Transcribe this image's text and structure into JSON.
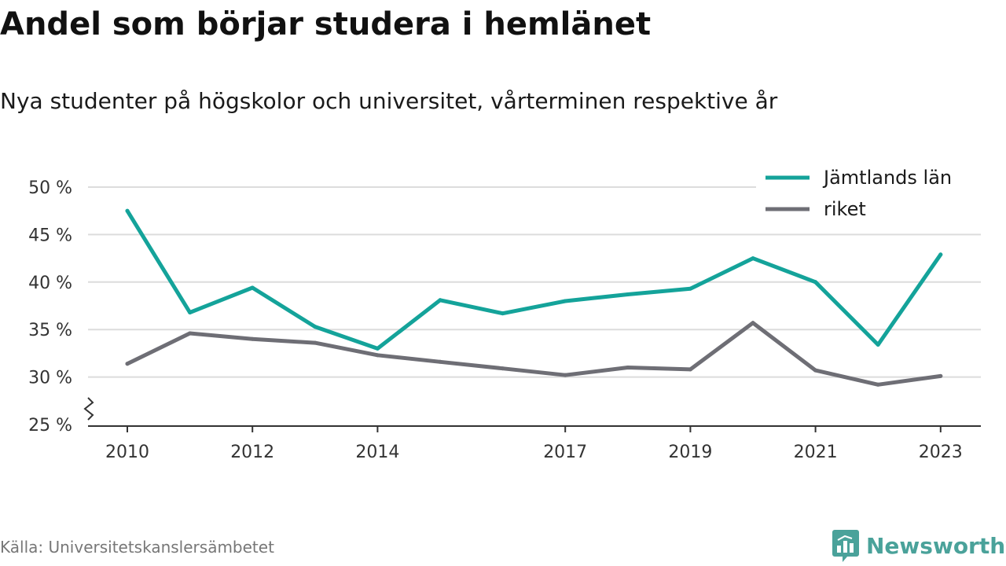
{
  "title": "Andel som börjar studera i hemlänet",
  "subtitle": "Nya studenter på högskolor och universitet, vårterminen respektive år",
  "source": "Källa: Universitetskanslersämbetet",
  "brand": {
    "name": "Newsworthy",
    "icon": "bar-chart-speech-bubble-icon",
    "color": "#4aa29a"
  },
  "chart_data": {
    "type": "line",
    "x": [
      2010,
      2011,
      2012,
      2013,
      2014,
      2015,
      2016,
      2017,
      2018,
      2019,
      2020,
      2021,
      2022,
      2023
    ],
    "x_tick_values": [
      2010,
      2012,
      2014,
      2017,
      2019,
      2021,
      2023
    ],
    "x_tick_labels": [
      "2010",
      "2012",
      "2014",
      "2017",
      "2019",
      "2021",
      "2023"
    ],
    "y_tick_values": [
      25,
      30,
      35,
      40,
      45,
      50
    ],
    "y_tick_labels": [
      "25 %",
      "30 %",
      "35 %",
      "40 %",
      "45 %",
      "50 %"
    ],
    "ylim": [
      25,
      50
    ],
    "y_axis_break": true,
    "grid": true,
    "legend_position": "top-right",
    "series": [
      {
        "name": "Jämtlands län",
        "color": "#14a39a",
        "values": [
          47.5,
          36.8,
          39.4,
          35.3,
          33.0,
          38.1,
          36.7,
          38.0,
          38.7,
          39.3,
          42.5,
          40.0,
          33.4,
          42.9
        ]
      },
      {
        "name": "riket",
        "color": "#6e6e75",
        "values": [
          31.4,
          34.6,
          34.0,
          33.6,
          32.3,
          31.6,
          30.9,
          30.2,
          31.0,
          30.8,
          35.7,
          30.7,
          29.2,
          30.1
        ]
      }
    ]
  }
}
